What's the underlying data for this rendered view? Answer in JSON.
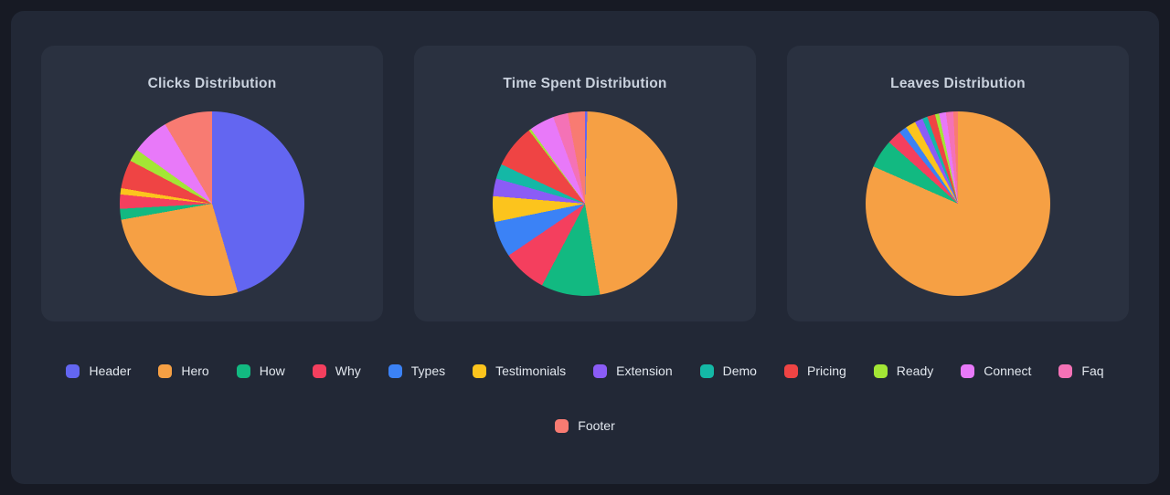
{
  "page": {
    "background": "#171a24",
    "panel_background": "#222836",
    "card_background": "#2a3140",
    "title_color": "#c9d1dd",
    "legend_text_color": "#e2e7ee"
  },
  "legend": {
    "position": "bottom",
    "rows": [
      12,
      1
    ],
    "items": [
      {
        "label": "Header",
        "color": "#6366f1"
      },
      {
        "label": "Hero",
        "color": "#f6a044"
      },
      {
        "label": "How",
        "color": "#12b981"
      },
      {
        "label": "Why",
        "color": "#f43f5e"
      },
      {
        "label": "Types",
        "color": "#3b82f6"
      },
      {
        "label": "Testimonials",
        "color": "#fcc41d"
      },
      {
        "label": "Extension",
        "color": "#8b5cf6"
      },
      {
        "label": "Demo",
        "color": "#14b8a6"
      },
      {
        "label": "Pricing",
        "color": "#ef4444"
      },
      {
        "label": "Ready",
        "color": "#a3e635"
      },
      {
        "label": "Connect",
        "color": "#e879f9"
      },
      {
        "label": "Faq",
        "color": "#f472b6"
      },
      {
        "label": "Footer",
        "color": "#f87b72"
      }
    ]
  },
  "chart_data": [
    {
      "type": "pie",
      "title": "Clicks Distribution",
      "start_angle_deg": 0,
      "direction": "clockwise",
      "values_unit": "percent_share_estimated",
      "labels": [
        "Header",
        "Hero",
        "How",
        "Why",
        "Types",
        "Testimonials",
        "Extension",
        "Demo",
        "Pricing",
        "Ready",
        "Connect",
        "Faq",
        "Footer"
      ],
      "values": [
        45.5,
        26.7,
        1.9,
        2.5,
        0,
        1.1,
        0,
        0,
        5.0,
        2.2,
        6.6,
        0,
        8.5
      ]
    },
    {
      "type": "pie",
      "title": "Time Spent Distribution",
      "start_angle_deg": 0,
      "direction": "clockwise",
      "values_unit": "percent_share_estimated",
      "labels": [
        "Header",
        "Hero",
        "How",
        "Why",
        "Types",
        "Testimonials",
        "Extension",
        "Demo",
        "Pricing",
        "Ready",
        "Connect",
        "Faq",
        "Footer"
      ],
      "values": [
        0.4,
        47.0,
        10.3,
        7.8,
        6.3,
        4.5,
        3.1,
        2.6,
        7.6,
        0.4,
        4.4,
        2.6,
        3.0
      ]
    },
    {
      "type": "pie",
      "title": "Leaves Distribution",
      "start_angle_deg": 0,
      "direction": "clockwise",
      "values_unit": "percent_share_estimated",
      "labels": [
        "Header",
        "Hero",
        "How",
        "Why",
        "Types",
        "Testimonials",
        "Extension",
        "Demo",
        "Pricing",
        "Ready",
        "Connect",
        "Faq",
        "Footer"
      ],
      "values": [
        0,
        81.6,
        5.0,
        2.5,
        1.4,
        1.8,
        1.4,
        0.9,
        1.4,
        0.7,
        1.2,
        1.3,
        0.8
      ]
    }
  ]
}
